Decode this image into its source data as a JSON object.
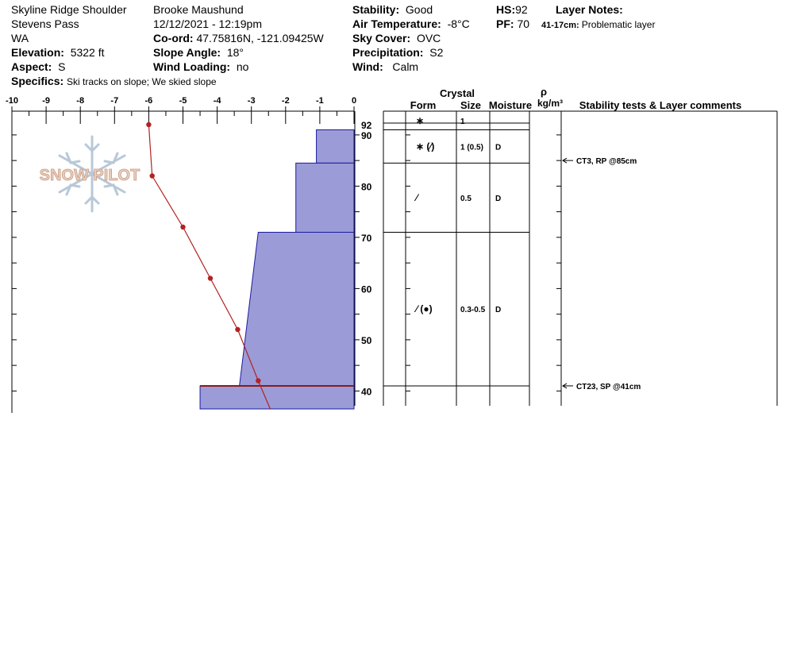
{
  "header": {
    "location": "Skyline Ridge Shoulder",
    "area": "Stevens Pass",
    "state": "WA",
    "elevation_label": "Elevation:",
    "elevation": "5322 ft",
    "aspect_label": "Aspect:",
    "aspect": "S",
    "specifics_label": "Specifics:",
    "specifics": "Ski tracks on slope; We skied slope",
    "observer": "Brooke Maushund",
    "datetime": "12/12/2021 - 12:19pm",
    "coord_label": "Co-ord:",
    "coord": "47.75816N, -121.09425W",
    "slope_label": "Slope Angle:",
    "slope": "18°",
    "wind_loading_label": "Wind Loading:",
    "wind_loading": "no",
    "stability_label": "Stability:",
    "stability": "Good",
    "air_temp_label": "Air Temperature:",
    "air_temp": "-8°C",
    "sky_label": "Sky Cover:",
    "sky": "OVC",
    "precip_label": "Precipitation:",
    "precip": "S2",
    "wind_label": "Wind:",
    "wind": "Calm",
    "hs_label": "HS:",
    "hs": "92",
    "pf_label": "PF:",
    "pf": "70",
    "layer_notes_label": "Layer Notes:",
    "layer_note_range": "41-17cm:",
    "layer_note_text": "Problematic layer"
  },
  "logo_text": "SNOW PILOT",
  "table_headers": {
    "crystal": "Crystal",
    "form": "Form",
    "size": "Size",
    "moisture": "Moisture",
    "rho": "ρ",
    "density_unit": "kg/m³",
    "comments": "Stability tests & Layer comments"
  },
  "layers": [
    {
      "top": 92,
      "bottom": 91,
      "form": "∗",
      "size": "1",
      "moisture": ""
    },
    {
      "top": 91,
      "bottom": 84.5,
      "form": "∗ (⁄)",
      "size": "1 (0.5)",
      "moisture": "D"
    },
    {
      "top": 84.5,
      "bottom": 71,
      "form": "⁄",
      "size": "0.5",
      "moisture": "D"
    },
    {
      "top": 71,
      "bottom": 41,
      "form": "⁄ (●)",
      "size": "0.3-0.5",
      "moisture": "D"
    }
  ],
  "stability_tests": [
    {
      "depth": 85,
      "text": "CT3, RP @85cm"
    },
    {
      "depth": 41,
      "text": "CT23, SP @41cm"
    }
  ],
  "colors": {
    "hardness_fill": "#9b9bd8",
    "hardness_stroke": "#1a1aa0",
    "temp_line": "#b22222",
    "layer_mark": "#8b1a1a"
  },
  "chart_data": {
    "type": "line",
    "xlabel": "",
    "ylabel": "",
    "xlim": [
      -10,
      0
    ],
    "ylim": [
      36.5,
      94
    ],
    "x_ticks": [
      -10,
      -9,
      -8,
      -7,
      -6,
      -5,
      -4,
      -3,
      -2,
      -1,
      0
    ],
    "y_ticks": [
      40,
      50,
      60,
      70,
      80,
      90,
      92
    ],
    "temperature_profile": [
      {
        "temp": -6.0,
        "height": 92
      },
      {
        "temp": -5.9,
        "height": 82
      },
      {
        "temp": -5.0,
        "height": 72
      },
      {
        "temp": -4.2,
        "height": 62
      },
      {
        "temp": -3.4,
        "height": 52
      },
      {
        "temp": -2.8,
        "height": 42
      },
      {
        "temp": -2.45,
        "height": 36.5
      }
    ],
    "hardness_profile": [
      {
        "top": 92,
        "bottom": 91,
        "hardness": 0
      },
      {
        "top": 91,
        "bottom": 84.5,
        "hardness": -1.1
      },
      {
        "top": 84.5,
        "bottom": 71,
        "hardness": -1.7
      },
      {
        "top": 71,
        "bottom": 41,
        "hardness_top": -2.8,
        "hardness_bottom": -3.35
      },
      {
        "top": 41,
        "bottom": 36.5,
        "hardness": -4.5
      }
    ],
    "problem_layer_depth": 41
  }
}
